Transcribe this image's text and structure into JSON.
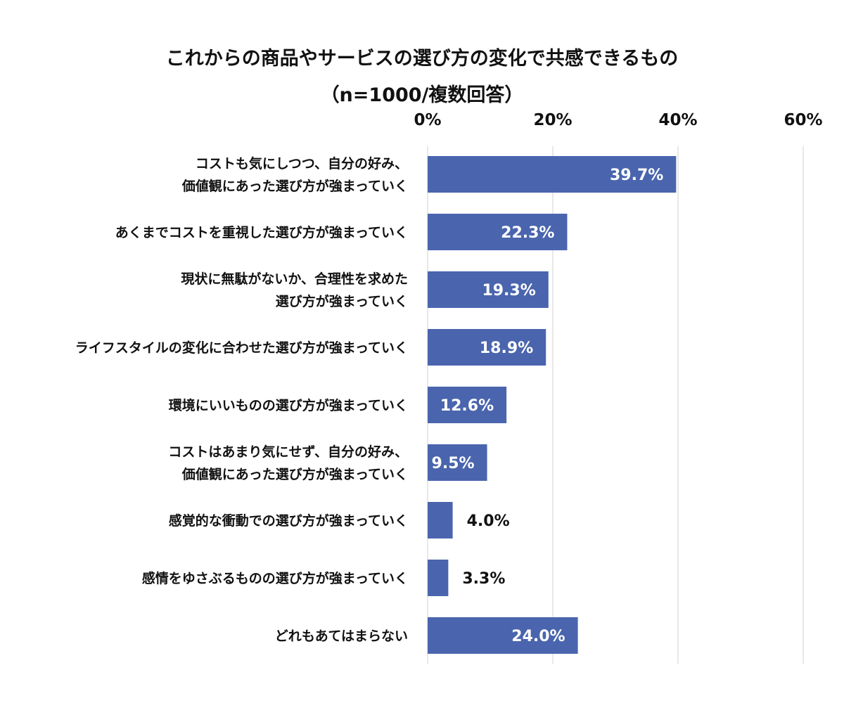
{
  "chart_data": {
    "type": "bar",
    "orientation": "horizontal",
    "title": [
      "これからの商品やサービスの選び方の変化で共感できるもの",
      "（n=1000/複数回答）"
    ],
    "categories": [
      [
        "コストも気にしつつ、自分の好み、",
        "価値観にあった選び方が強まっていく"
      ],
      [
        "あくまでコストを重視した選び方が強まっていく"
      ],
      [
        "現状に無駄がないか、合理性を求めた",
        "選び方が強まっていく"
      ],
      [
        "ライフスタイルの変化に合わせた選び方が強まっていく"
      ],
      [
        "環境にいいものの選び方が強まっていく"
      ],
      [
        "コストはあまり気にせず、自分の好み、",
        "価値観にあった選び方が強まっていく"
      ],
      [
        "感覚的な衝動での選び方が強まっていく"
      ],
      [
        "感情をゆさぶるものの選び方が強まっていく"
      ],
      [
        "どれもあてはまらない"
      ]
    ],
    "values": [
      39.7,
      22.3,
      19.3,
      18.9,
      12.6,
      9.5,
      4.0,
      3.3,
      24.0
    ],
    "value_labels": [
      "39.7%",
      "22.3%",
      "19.3%",
      "18.9%",
      "12.6%",
      "9.5%",
      "4.0%",
      "3.3%",
      "24.0%"
    ],
    "xlim": [
      0,
      60
    ],
    "x_ticks": [
      0,
      20,
      40,
      60
    ],
    "x_tick_labels": [
      "0%",
      "20%",
      "40%",
      "60%"
    ],
    "axis_position": "top",
    "grid": true,
    "bar_color": "#4a65ae",
    "grid_color": "#d9d9d9",
    "label_inside_color": "#ffffff",
    "label_outside_color": "#111111"
  }
}
